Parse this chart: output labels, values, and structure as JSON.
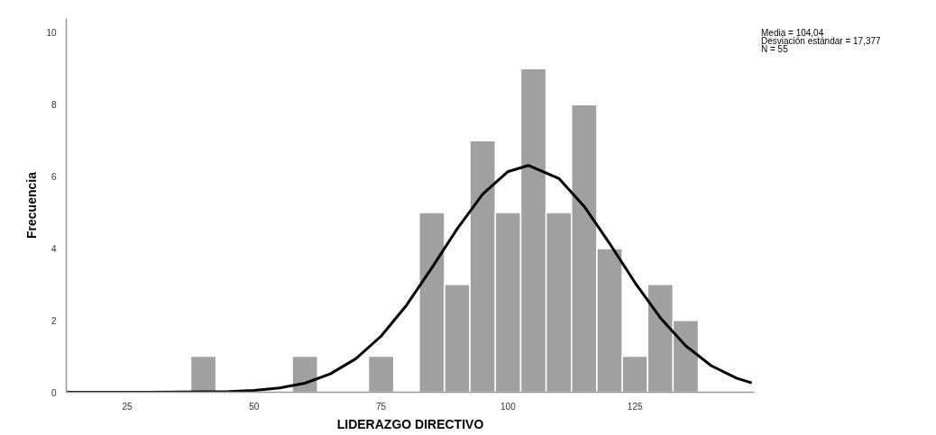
{
  "chart_data": {
    "type": "histogram",
    "xlabel": "LIDERAZGO DIRECTIVO",
    "ylabel": "Frecuencia",
    "bins": [
      37.5,
      42.5,
      47.5,
      52.5,
      57.5,
      62.5,
      67.5,
      72.5,
      77.5,
      82.5,
      87.5,
      92.5,
      97.5,
      102.5,
      107.5,
      112.5,
      117.5,
      122.5,
      127.5,
      132.5,
      137.5
    ],
    "values": [
      1,
      0,
      0,
      0,
      1,
      0,
      0,
      1,
      0,
      5,
      3,
      7,
      5,
      9,
      5,
      8,
      4,
      1,
      3,
      2
    ],
    "color": "#a0a0a0",
    "series": [
      {
        "type": "line",
        "color": "#000000",
        "x": [
          13,
          20,
          30,
          40,
          45,
          50,
          55,
          60,
          65,
          70,
          75,
          80,
          85,
          90,
          95,
          100,
          104,
          110,
          115,
          120,
          125,
          130,
          135,
          140,
          145,
          148
        ],
        "values": [
          0,
          0,
          0,
          0.01,
          0.02,
          0.05,
          0.12,
          0.25,
          0.51,
          0.93,
          1.56,
          2.42,
          3.46,
          4.55,
          5.51,
          6.14,
          6.31,
          5.95,
          5.17,
          4.14,
          3.05,
          2.07,
          1.29,
          0.74,
          0.39,
          0.26
        ]
      }
    ],
    "xlim": [
      13,
      148.5
    ],
    "ylim": [
      0,
      10.4
    ],
    "xticks": [
      25,
      50,
      75,
      100,
      125
    ],
    "yticks": [
      0,
      2,
      4,
      6,
      8,
      10
    ],
    "grid": false,
    "annotations": [
      "Media = 104,04",
      "Desviación estándar = 17,377",
      "N = 55"
    ]
  }
}
